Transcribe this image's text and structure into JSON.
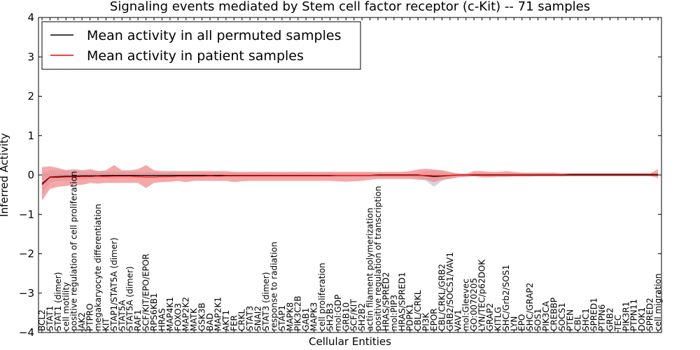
{
  "chart_data": {
    "type": "line",
    "title": "Signaling events mediated by Stem cell factor receptor (c-Kit) -- 71 samples",
    "xlabel": "Cellular Entities",
    "ylabel": "Inferred Activity",
    "ylim": [
      -4,
      4
    ],
    "yticks": [
      -4,
      -3,
      -2,
      -1,
      0,
      1,
      2,
      3,
      4
    ],
    "ytick_labels": [
      "−4",
      "−3",
      "−2",
      "−1",
      "0",
      "1",
      "2",
      "3",
      "4"
    ],
    "legend_position": "top-left",
    "categories": [
      "BCL2",
      "STAT1",
      "STAT1 (dimer)",
      "cell motility",
      "positive regulation of cell proliferation",
      "JAK2",
      "PTPRO",
      "megakaryocyte differentiation",
      "KIT",
      "STAP1/STAT5A (dimer)",
      "STAT5A",
      "STAT5A (dimer)",
      "RAF1",
      "SCF/KIT/EPO/EPOR",
      "RPS6KB1",
      "HRAS",
      "MAP4K1",
      "FOXO3",
      "MAP2K2",
      "MATK",
      "GSK3B",
      "BAD",
      "MAP2K1",
      "AKT1",
      "FER",
      "CRKL",
      "STAT3",
      "SNAI2",
      "STAT3 (dimer)",
      "response to radiation",
      "STAP1",
      "MAPK8",
      "PIK3C2B",
      "GAB1",
      "MAPK3",
      "cell proliferation",
      "SH2B3",
      "mol:GDP",
      "GRB10",
      "SCF/KIT",
      "SH2B2",
      "actin filament polymerization",
      "positive regulation of transcription",
      "HRAS/SPRED2",
      "mol:PIP3",
      "HRAS/SPRED1",
      "PDPK1",
      "CBL/CRKL",
      "PI3K",
      "EPOR",
      "CBL/CRKL/GRB2",
      "GRB2/SOCS1/VAV1",
      "VAV1",
      "mol:Gleevec",
      "GO:0070205",
      "LYN/TEC/p62DOK",
      "GRAP2",
      "KITLG",
      "SHC/Grb2/SOS1",
      "LYN",
      "EPO",
      "SHC/GRAP2",
      "SOS1",
      "PIK3CA",
      "CREBBP",
      "SOCS1",
      "PTEN",
      "CBL",
      "SHC1",
      "SPRED1",
      "PTPN6",
      "GRB2",
      "TEC",
      "PIK3R1",
      "PTPN11",
      "DOK1",
      "SPRED2",
      "cell migration"
    ],
    "series": [
      {
        "name": "Mean activity in all permuted samples",
        "color": "#000000",
        "values": [
          -0.22,
          -0.05,
          -0.04,
          -0.03,
          -0.03,
          -0.02,
          -0.02,
          -0.02,
          -0.01,
          -0.01,
          -0.01,
          -0.01,
          -0.01,
          -0.01,
          -0.01,
          -0.01,
          -0.01,
          -0.01,
          -0.01,
          -0.01,
          -0.01,
          -0.01,
          -0.01,
          -0.01,
          -0.01,
          -0.01,
          -0.01,
          -0.01,
          -0.01,
          -0.01,
          -0.01,
          -0.01,
          -0.01,
          -0.01,
          -0.01,
          -0.01,
          -0.01,
          -0.01,
          -0.01,
          -0.01,
          -0.01,
          -0.01,
          0.0,
          0.0,
          0.0,
          0.0,
          0.0,
          0.0,
          -0.02,
          -0.04,
          -0.03,
          -0.01,
          0.0,
          0.0,
          0.0,
          0.0,
          0.0,
          0.0,
          0.0,
          0.0,
          0.0,
          0.0,
          0.0,
          0.0,
          0.0,
          0.0,
          0.0,
          0.0,
          0.0,
          0.0,
          0.0,
          0.0,
          0.0,
          0.0,
          0.0,
          0.0,
          0.0,
          0.0
        ],
        "lower": [
          -0.5,
          -0.2,
          -0.15,
          -0.15,
          -0.12,
          -0.12,
          -0.1,
          -0.1,
          -0.08,
          -0.08,
          -0.08,
          -0.08,
          -0.08,
          -0.08,
          -0.08,
          -0.06,
          -0.06,
          -0.06,
          -0.06,
          -0.06,
          -0.06,
          -0.06,
          -0.06,
          -0.06,
          -0.06,
          -0.06,
          -0.06,
          -0.06,
          -0.06,
          -0.06,
          -0.06,
          -0.06,
          -0.06,
          -0.06,
          -0.06,
          -0.06,
          -0.06,
          -0.06,
          -0.06,
          -0.06,
          -0.06,
          -0.06,
          -0.05,
          -0.05,
          -0.05,
          -0.05,
          -0.05,
          -0.08,
          -0.15,
          -0.3,
          -0.15,
          -0.08,
          -0.05,
          -0.04,
          -0.04,
          -0.04,
          -0.04,
          -0.04,
          -0.04,
          -0.04,
          -0.04,
          -0.04,
          -0.04,
          -0.04,
          -0.04,
          -0.04,
          -0.04,
          -0.04,
          -0.04,
          -0.04,
          -0.04,
          -0.04,
          -0.04,
          -0.04,
          -0.04,
          -0.04,
          -0.04,
          -0.04
        ],
        "upper": [
          0.05,
          0.12,
          0.12,
          0.12,
          0.1,
          0.1,
          0.1,
          0.1,
          0.08,
          0.08,
          0.08,
          0.08,
          0.08,
          0.08,
          0.08,
          0.06,
          0.06,
          0.06,
          0.06,
          0.06,
          0.06,
          0.06,
          0.06,
          0.06,
          0.06,
          0.06,
          0.06,
          0.06,
          0.06,
          0.06,
          0.06,
          0.06,
          0.06,
          0.06,
          0.06,
          0.06,
          0.06,
          0.06,
          0.06,
          0.06,
          0.06,
          0.06,
          0.05,
          0.05,
          0.05,
          0.05,
          0.05,
          0.06,
          0.1,
          0.12,
          0.1,
          0.06,
          0.05,
          0.04,
          0.04,
          0.04,
          0.04,
          0.04,
          0.04,
          0.04,
          0.04,
          0.04,
          0.04,
          0.04,
          0.04,
          0.04,
          0.04,
          0.04,
          0.04,
          0.04,
          0.04,
          0.04,
          0.04,
          0.04,
          0.04,
          0.04,
          0.04,
          0.04
        ]
      },
      {
        "name": "Mean activity in patient samples",
        "color": "#ff0000",
        "fill": "#f28b8b",
        "values": [
          -0.25,
          -0.06,
          -0.06,
          -0.05,
          -0.05,
          -0.04,
          -0.04,
          -0.03,
          -0.04,
          -0.03,
          -0.03,
          -0.03,
          -0.04,
          -0.05,
          -0.05,
          -0.04,
          -0.04,
          -0.03,
          -0.03,
          -0.03,
          -0.03,
          -0.02,
          -0.03,
          -0.02,
          -0.02,
          -0.02,
          -0.02,
          -0.02,
          -0.02,
          -0.02,
          -0.02,
          -0.02,
          -0.02,
          -0.02,
          -0.02,
          -0.02,
          -0.02,
          -0.01,
          -0.01,
          -0.01,
          -0.01,
          -0.01,
          -0.01,
          -0.01,
          -0.01,
          -0.01,
          -0.01,
          -0.01,
          -0.01,
          -0.02,
          -0.02,
          -0.01,
          0.0,
          0.0,
          0.01,
          0.01,
          0.01,
          0.01,
          0.01,
          0.01,
          0.01,
          0.01,
          0.01,
          0.01,
          0.01,
          0.01,
          0.02,
          0.02,
          0.02,
          0.02,
          0.02,
          0.02,
          0.02,
          0.02,
          0.02,
          0.02,
          0.02,
          0.02
        ],
        "lower": [
          -0.65,
          -0.35,
          -0.3,
          -0.28,
          -0.25,
          -0.25,
          -0.2,
          -0.22,
          -0.2,
          -0.2,
          -0.2,
          -0.2,
          -0.2,
          -0.33,
          -0.2,
          -0.18,
          -0.17,
          -0.15,
          -0.18,
          -0.15,
          -0.15,
          -0.15,
          -0.15,
          -0.15,
          -0.18,
          -0.16,
          -0.15,
          -0.15,
          -0.15,
          -0.15,
          -0.15,
          -0.15,
          -0.15,
          -0.15,
          -0.15,
          -0.15,
          -0.15,
          -0.16,
          -0.17,
          -0.16,
          -0.15,
          -0.12,
          -0.1,
          -0.1,
          -0.1,
          -0.1,
          -0.1,
          -0.12,
          -0.12,
          -0.18,
          -0.12,
          -0.1,
          -0.06,
          -0.05,
          -0.03,
          -0.06,
          -0.06,
          -0.05,
          -0.05,
          -0.04,
          -0.04,
          -0.04,
          -0.03,
          -0.03,
          -0.03,
          -0.03,
          -0.02,
          -0.02,
          -0.02,
          -0.02,
          -0.02,
          -0.02,
          -0.02,
          -0.02,
          -0.02,
          -0.02,
          -0.02,
          -0.08
        ],
        "upper": [
          0.2,
          0.22,
          0.18,
          0.12,
          0.15,
          0.12,
          0.15,
          0.1,
          0.12,
          0.25,
          0.12,
          0.12,
          0.15,
          0.25,
          0.12,
          0.1,
          0.1,
          0.1,
          0.1,
          0.1,
          0.1,
          0.1,
          0.1,
          0.1,
          0.08,
          0.08,
          0.08,
          0.08,
          0.08,
          0.08,
          0.08,
          0.08,
          0.08,
          0.08,
          0.08,
          0.08,
          0.08,
          0.08,
          0.08,
          0.08,
          0.08,
          0.08,
          0.08,
          0.08,
          0.08,
          0.08,
          0.1,
          0.14,
          0.16,
          0.14,
          0.12,
          0.08,
          0.03,
          0.03,
          0.1,
          0.1,
          0.08,
          0.08,
          0.1,
          0.08,
          0.06,
          0.06,
          0.06,
          0.06,
          0.06,
          0.04,
          0.04,
          0.04,
          0.04,
          0.04,
          0.04,
          0.04,
          0.04,
          0.04,
          0.04,
          0.04,
          0.04,
          0.15
        ]
      }
    ]
  }
}
